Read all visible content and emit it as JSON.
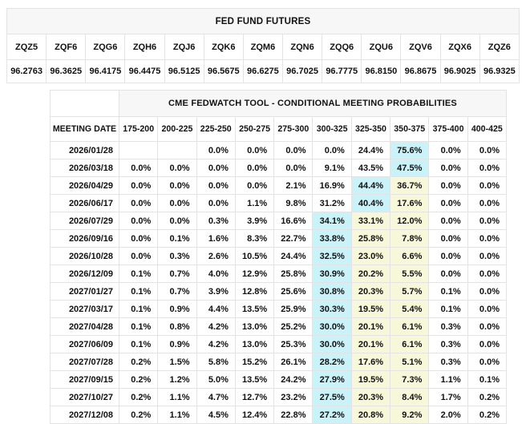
{
  "colors": {
    "page_background": "#ffffff",
    "title_row_background": "#f7f7f7",
    "grid_border": "#e3e3e3",
    "outer_border": "#d2d2d2",
    "highlight_primary": "#c9f2f9",
    "highlight_secondary": "#f7f8da"
  },
  "futures_table": {
    "title": "FED FUND FUTURES",
    "columns": [
      "ZQZ5",
      "ZQF6",
      "ZQG6",
      "ZQH6",
      "ZQJ6",
      "ZQK6",
      "ZQM6",
      "ZQN6",
      "ZQQ6",
      "ZQU6",
      "ZQV6",
      "ZQX6",
      "ZQZ6"
    ],
    "values": [
      "96.2763",
      "96.3625",
      "96.4175",
      "96.4475",
      "96.5125",
      "96.5675",
      "96.6275",
      "96.7025",
      "96.7775",
      "96.8150",
      "96.8675",
      "96.9025",
      "96.9325"
    ]
  },
  "fedwatch_table": {
    "title": "CME FEDWATCH TOOL - CONDITIONAL MEETING PROBABILITIES",
    "date_header": "MEETING DATE",
    "rate_headers": [
      "175-200",
      "200-225",
      "225-250",
      "250-275",
      "275-300",
      "300-325",
      "325-350",
      "350-375",
      "375-400",
      "400-425"
    ],
    "rows": [
      {
        "date": "2026/01/28",
        "values": [
          "",
          "",
          "0.0%",
          "0.0%",
          "0.0%",
          "0.0%",
          "24.4%",
          "75.6%",
          "0.0%",
          "0.0%"
        ],
        "highlights": {
          "7": "primary"
        }
      },
      {
        "date": "2026/03/18",
        "values": [
          "0.0%",
          "0.0%",
          "0.0%",
          "0.0%",
          "0.0%",
          "9.1%",
          "43.5%",
          "47.5%",
          "0.0%",
          "0.0%"
        ],
        "highlights": {
          "7": "primary"
        }
      },
      {
        "date": "2026/04/29",
        "values": [
          "0.0%",
          "0.0%",
          "0.0%",
          "0.0%",
          "2.1%",
          "16.9%",
          "44.4%",
          "36.7%",
          "0.0%",
          "0.0%"
        ],
        "highlights": {
          "6": "primary",
          "7": "secondary"
        }
      },
      {
        "date": "2026/06/17",
        "values": [
          "0.0%",
          "0.0%",
          "0.0%",
          "1.1%",
          "9.8%",
          "31.2%",
          "40.4%",
          "17.6%",
          "0.0%",
          "0.0%"
        ],
        "highlights": {
          "6": "primary",
          "7": "secondary"
        }
      },
      {
        "date": "2026/07/29",
        "values": [
          "0.0%",
          "0.0%",
          "0.3%",
          "3.9%",
          "16.6%",
          "34.1%",
          "33.1%",
          "12.0%",
          "0.0%",
          "0.0%"
        ],
        "highlights": {
          "5": "primary",
          "6": "secondary",
          "7": "secondary"
        }
      },
      {
        "date": "2026/09/16",
        "values": [
          "0.0%",
          "0.1%",
          "1.6%",
          "8.3%",
          "22.7%",
          "33.8%",
          "25.8%",
          "7.8%",
          "0.0%",
          "0.0%"
        ],
        "highlights": {
          "5": "primary",
          "6": "secondary",
          "7": "secondary"
        }
      },
      {
        "date": "2026/10/28",
        "values": [
          "0.0%",
          "0.3%",
          "2.6%",
          "10.5%",
          "24.4%",
          "32.5%",
          "23.0%",
          "6.6%",
          "0.0%",
          "0.0%"
        ],
        "highlights": {
          "5": "primary",
          "6": "secondary",
          "7": "secondary"
        }
      },
      {
        "date": "2026/12/09",
        "values": [
          "0.1%",
          "0.7%",
          "4.0%",
          "12.9%",
          "25.8%",
          "30.9%",
          "20.2%",
          "5.5%",
          "0.0%",
          "0.0%"
        ],
        "highlights": {
          "5": "primary",
          "6": "secondary",
          "7": "secondary"
        }
      },
      {
        "date": "2027/01/27",
        "values": [
          "0.1%",
          "0.7%",
          "3.9%",
          "12.8%",
          "25.6%",
          "30.8%",
          "20.3%",
          "5.7%",
          "0.1%",
          "0.0%"
        ],
        "highlights": {
          "5": "primary",
          "6": "secondary",
          "7": "secondary"
        }
      },
      {
        "date": "2027/03/17",
        "values": [
          "0.1%",
          "0.9%",
          "4.4%",
          "13.5%",
          "25.9%",
          "30.3%",
          "19.5%",
          "5.4%",
          "0.1%",
          "0.0%"
        ],
        "highlights": {
          "5": "primary",
          "6": "secondary",
          "7": "secondary"
        }
      },
      {
        "date": "2027/04/28",
        "values": [
          "0.1%",
          "0.8%",
          "4.2%",
          "13.0%",
          "25.2%",
          "30.0%",
          "20.1%",
          "6.1%",
          "0.3%",
          "0.0%"
        ],
        "highlights": {
          "5": "primary",
          "6": "secondary",
          "7": "secondary"
        }
      },
      {
        "date": "2027/06/09",
        "values": [
          "0.1%",
          "0.9%",
          "4.2%",
          "13.0%",
          "25.3%",
          "30.0%",
          "20.1%",
          "6.1%",
          "0.3%",
          "0.0%"
        ],
        "highlights": {
          "5": "primary",
          "6": "secondary",
          "7": "secondary"
        }
      },
      {
        "date": "2027/07/28",
        "values": [
          "0.2%",
          "1.5%",
          "5.8%",
          "15.2%",
          "26.1%",
          "28.2%",
          "17.6%",
          "5.1%",
          "0.3%",
          "0.0%"
        ],
        "highlights": {
          "5": "primary",
          "6": "secondary",
          "7": "secondary"
        }
      },
      {
        "date": "2027/09/15",
        "values": [
          "0.2%",
          "1.2%",
          "5.0%",
          "13.5%",
          "24.2%",
          "27.9%",
          "19.5%",
          "7.3%",
          "1.1%",
          "0.1%"
        ],
        "highlights": {
          "5": "primary",
          "6": "secondary",
          "7": "secondary"
        }
      },
      {
        "date": "2027/10/27",
        "values": [
          "0.2%",
          "1.1%",
          "4.7%",
          "12.7%",
          "23.2%",
          "27.5%",
          "20.3%",
          "8.4%",
          "1.7%",
          "0.2%"
        ],
        "highlights": {
          "5": "primary",
          "6": "secondary",
          "7": "secondary"
        }
      },
      {
        "date": "2027/12/08",
        "values": [
          "0.2%",
          "1.1%",
          "4.5%",
          "12.4%",
          "22.8%",
          "27.2%",
          "20.8%",
          "9.2%",
          "2.0%",
          "0.2%"
        ],
        "highlights": {
          "5": "primary",
          "6": "secondary",
          "7": "secondary"
        }
      }
    ]
  }
}
